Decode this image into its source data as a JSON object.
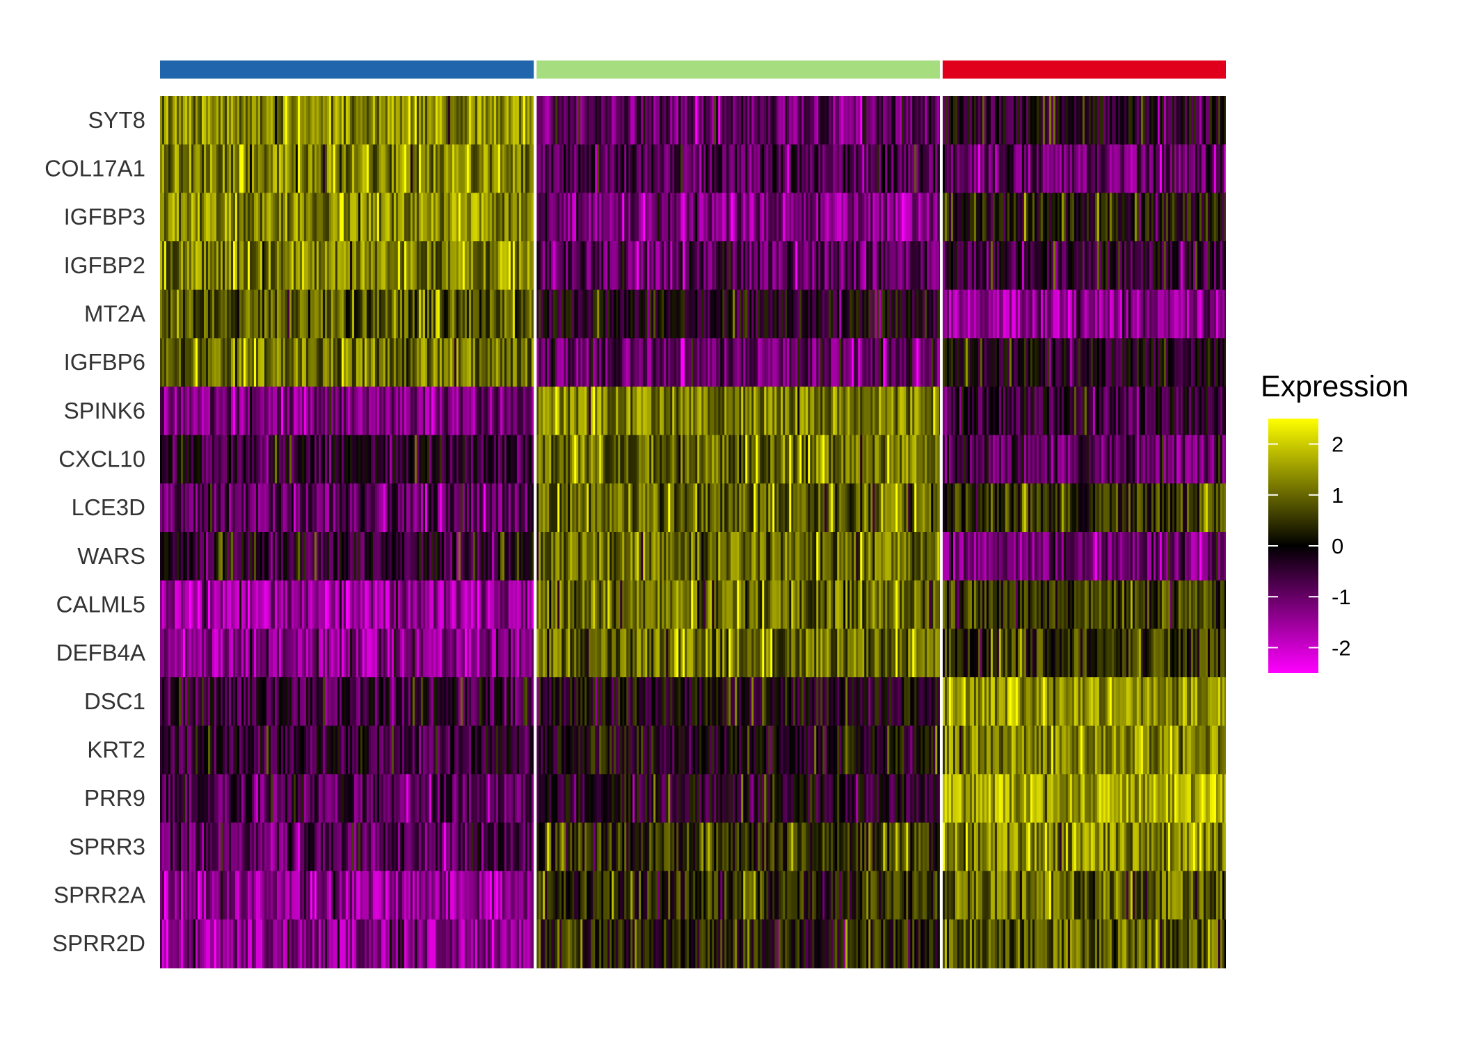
{
  "chart_data": {
    "type": "heatmap",
    "title": "",
    "xlabel": "",
    "ylabel": "",
    "genes": [
      "SYT8",
      "COL17A1",
      "IGFBP3",
      "IGFBP2",
      "MT2A",
      "IGFBP6",
      "SPINK6",
      "CXCL10",
      "LCE3D",
      "WARS",
      "CALML5",
      "DEFB4A",
      "DSC1",
      "KRT2",
      "PRR9",
      "SPRR3",
      "SPRR2A",
      "SPRR2D"
    ],
    "clusters": [
      {
        "color": "#2166AC",
        "cell_fraction": 0.352
      },
      {
        "color": "#A6DD7E",
        "cell_fraction": 0.381
      },
      {
        "color": "#E0001B",
        "cell_fraction": 0.267
      }
    ],
    "mean_expression": [
      [
        1.3,
        -1.0,
        -0.3
      ],
      [
        1.2,
        -0.7,
        -0.9
      ],
      [
        1.3,
        -1.3,
        0.1
      ],
      [
        1.2,
        -0.9,
        -0.5
      ],
      [
        0.8,
        -0.2,
        -1.5
      ],
      [
        1.1,
        -1.0,
        -0.2
      ],
      [
        -1.2,
        1.2,
        -0.5
      ],
      [
        -0.5,
        1.1,
        -0.9
      ],
      [
        -0.9,
        0.9,
        0.5
      ],
      [
        -0.4,
        1.0,
        -1.1
      ],
      [
        -1.5,
        1.0,
        0.5
      ],
      [
        -1.4,
        1.0,
        0.4
      ],
      [
        -0.6,
        -0.1,
        1.4
      ],
      [
        -0.5,
        -0.1,
        1.3
      ],
      [
        -0.8,
        -0.3,
        1.6
      ],
      [
        -0.9,
        0.4,
        1.2
      ],
      [
        -1.4,
        0.3,
        1.0
      ],
      [
        -1.4,
        0.2,
        0.9
      ]
    ],
    "color_scale": {
      "min": -2.5,
      "max": 2.5,
      "stops": [
        {
          "value": -2.5,
          "color": "#FF00FF"
        },
        {
          "value": 0,
          "color": "#000000"
        },
        {
          "value": 2.5,
          "color": "#FFFF00"
        }
      ]
    },
    "legend": {
      "title": "Expression",
      "ticks": [
        2,
        1,
        0,
        -1,
        -2
      ],
      "placement": "right"
    }
  }
}
